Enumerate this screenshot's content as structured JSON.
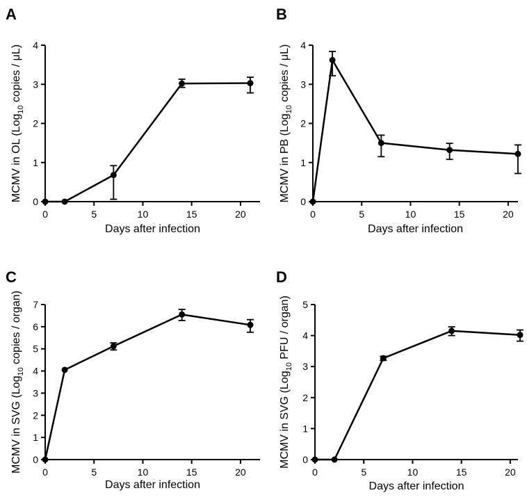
{
  "chart_data": [
    {
      "type": "line",
      "panel_label": "A",
      "xlabel": "Days after infection",
      "ylabel": {
        "before": "MCMV in OL (Log",
        "sub": "10",
        "after": " copies / μL)"
      },
      "xlim": [
        0,
        22
      ],
      "ylim": [
        0,
        4
      ],
      "xticks": [
        0,
        5,
        10,
        15,
        20
      ],
      "yticks": [
        0,
        1,
        2,
        3,
        4
      ],
      "series": [
        {
          "x": [
            0,
            2,
            7,
            14,
            21
          ],
          "y": [
            0,
            0,
            0.68,
            3.02,
            3.03
          ],
          "err_low": [
            0,
            0,
            0.06,
            2.92,
            2.78
          ],
          "err_high": [
            0,
            0,
            0.92,
            3.13,
            3.18
          ]
        }
      ]
    },
    {
      "type": "line",
      "panel_label": "B",
      "xlabel": "Days after infection",
      "ylabel": {
        "before": "MCMV in PB (Log",
        "sub": "10",
        "after": " copies / μL)"
      },
      "xlim": [
        0,
        22
      ],
      "ylim": [
        0,
        4
      ],
      "xticks": [
        0,
        5,
        10,
        15,
        20
      ],
      "yticks": [
        0,
        1,
        2,
        3,
        4
      ],
      "series": [
        {
          "x": [
            0,
            2,
            7,
            14,
            21
          ],
          "y": [
            0,
            3.62,
            1.5,
            1.32,
            1.22
          ],
          "err_low": [
            0,
            3.22,
            1.15,
            1.08,
            0.72
          ],
          "err_high": [
            0,
            3.84,
            1.7,
            1.49,
            1.45
          ]
        }
      ]
    },
    {
      "type": "line",
      "panel_label": "C",
      "xlabel": "Days after infection",
      "ylabel": {
        "before": "MCMV in SVG (Log",
        "sub": "10",
        "after": " copies / organ)"
      },
      "xlim": [
        0,
        22
      ],
      "ylim": [
        0,
        7
      ],
      "xticks": [
        0,
        5,
        10,
        15,
        20
      ],
      "yticks": [
        0,
        1,
        2,
        3,
        4,
        5,
        6,
        7
      ],
      "series": [
        {
          "x": [
            0,
            2,
            7,
            14,
            21
          ],
          "y": [
            0,
            4.05,
            5.12,
            6.55,
            6.08
          ],
          "err_low": [
            0,
            4.02,
            4.95,
            6.28,
            5.75
          ],
          "err_high": [
            0,
            4.08,
            5.27,
            6.78,
            6.32
          ]
        }
      ]
    },
    {
      "type": "line",
      "panel_label": "D",
      "xlabel": "Days after infection",
      "ylabel": {
        "before": "MCMV in SVG (Log",
        "sub": "10",
        "after": " PFU / organ)"
      },
      "xlim": [
        0,
        22
      ],
      "ylim": [
        0,
        5
      ],
      "xticks": [
        0,
        5,
        10,
        15,
        20
      ],
      "yticks": [
        0,
        1,
        2,
        3,
        4,
        5
      ],
      "series": [
        {
          "x": [
            0,
            2,
            7,
            14,
            21
          ],
          "y": [
            0,
            0,
            3.27,
            4.15,
            4.02
          ],
          "err_low": [
            0,
            0,
            3.2,
            4.0,
            3.82
          ],
          "err_high": [
            0,
            0,
            3.33,
            4.28,
            4.18
          ]
        }
      ]
    }
  ]
}
